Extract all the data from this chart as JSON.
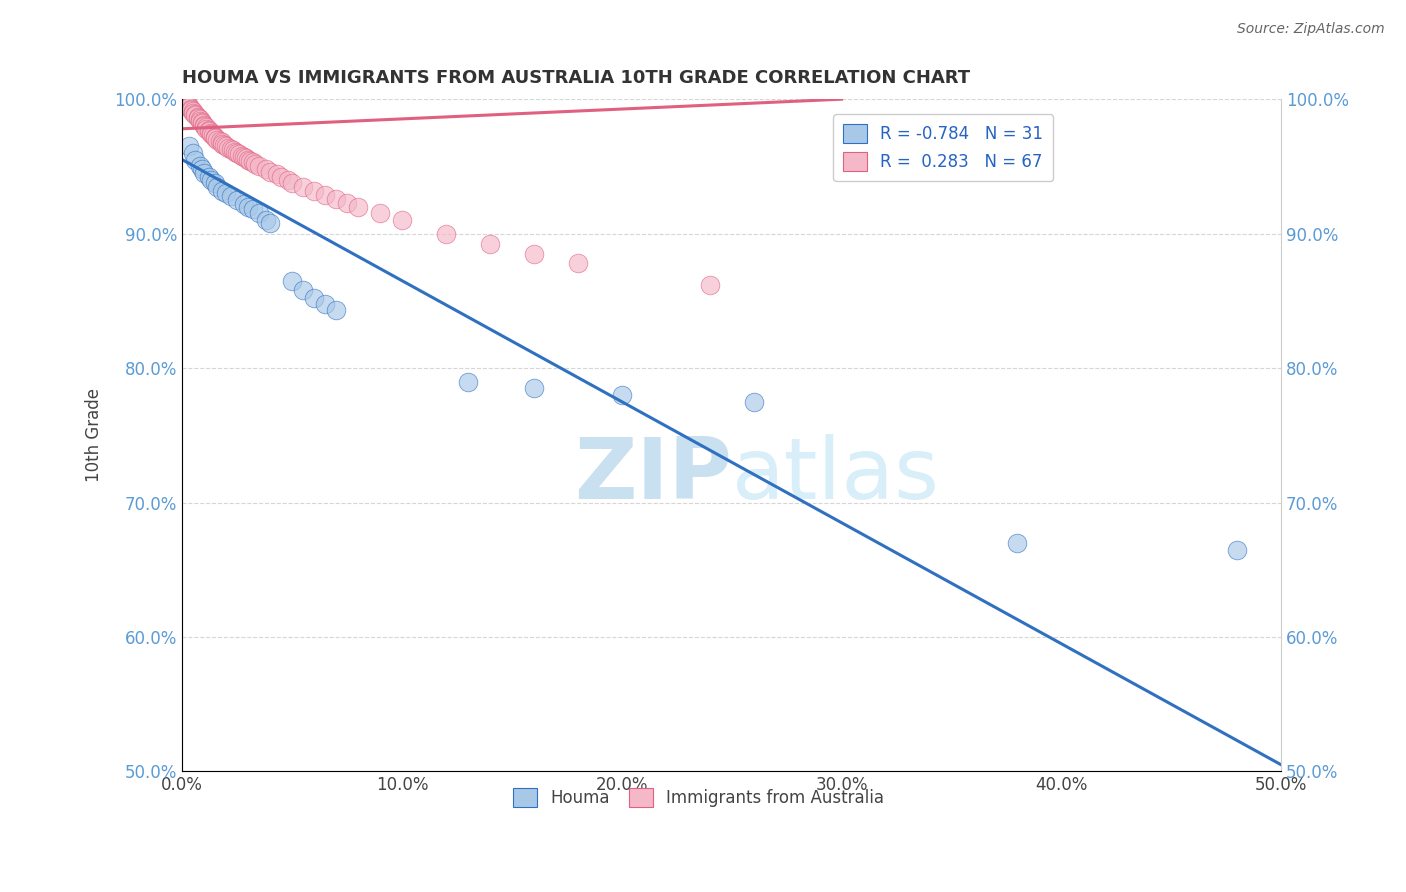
{
  "title": "HOUMA VS IMMIGRANTS FROM AUSTRALIA 10TH GRADE CORRELATION CHART",
  "source_text": "Source: ZipAtlas.com",
  "ylabel": "10th Grade",
  "xlim": [
    0.0,
    0.5
  ],
  "ylim": [
    0.5,
    1.0
  ],
  "xticks": [
    0.0,
    0.1,
    0.2,
    0.3,
    0.4,
    0.5
  ],
  "yticks": [
    0.5,
    0.6,
    0.7,
    0.8,
    0.9,
    1.0
  ],
  "xticklabels": [
    "0.0%",
    "10.0%",
    "20.0%",
    "30.0%",
    "40.0%",
    "50.0%"
  ],
  "yticklabels": [
    "50.0%",
    "60.0%",
    "70.0%",
    "80.0%",
    "90.0%",
    "100.0%"
  ],
  "blue_R": -0.784,
  "blue_N": 31,
  "pink_R": 0.283,
  "pink_N": 67,
  "blue_color": "#A8C8E8",
  "pink_color": "#F4B8C8",
  "blue_line_color": "#3070C0",
  "pink_line_color": "#E06080",
  "blue_scatter_x": [
    0.003,
    0.005,
    0.006,
    0.008,
    0.009,
    0.01,
    0.012,
    0.013,
    0.015,
    0.016,
    0.018,
    0.02,
    0.022,
    0.025,
    0.028,
    0.03,
    0.032,
    0.035,
    0.038,
    0.04,
    0.05,
    0.055,
    0.06,
    0.065,
    0.07,
    0.13,
    0.16,
    0.2,
    0.26,
    0.38,
    0.48
  ],
  "blue_scatter_y": [
    0.965,
    0.96,
    0.955,
    0.95,
    0.948,
    0.945,
    0.942,
    0.94,
    0.938,
    0.935,
    0.932,
    0.93,
    0.928,
    0.925,
    0.922,
    0.92,
    0.918,
    0.915,
    0.91,
    0.908,
    0.865,
    0.858,
    0.852,
    0.848,
    0.843,
    0.79,
    0.785,
    0.78,
    0.775,
    0.67,
    0.665
  ],
  "pink_scatter_x": [
    0.001,
    0.002,
    0.002,
    0.003,
    0.003,
    0.004,
    0.004,
    0.005,
    0.005,
    0.006,
    0.006,
    0.007,
    0.007,
    0.008,
    0.008,
    0.009,
    0.009,
    0.01,
    0.01,
    0.011,
    0.011,
    0.012,
    0.012,
    0.013,
    0.013,
    0.014,
    0.015,
    0.015,
    0.016,
    0.017,
    0.018,
    0.018,
    0.019,
    0.02,
    0.021,
    0.022,
    0.023,
    0.024,
    0.025,
    0.026,
    0.027,
    0.028,
    0.029,
    0.03,
    0.031,
    0.032,
    0.033,
    0.035,
    0.038,
    0.04,
    0.043,
    0.045,
    0.048,
    0.05,
    0.055,
    0.06,
    0.065,
    0.07,
    0.075,
    0.08,
    0.09,
    0.1,
    0.12,
    0.14,
    0.16,
    0.18,
    0.24
  ],
  "pink_scatter_y": [
    0.998,
    0.997,
    0.996,
    0.995,
    0.994,
    0.993,
    0.992,
    0.991,
    0.99,
    0.989,
    0.988,
    0.987,
    0.986,
    0.985,
    0.984,
    0.983,
    0.982,
    0.981,
    0.98,
    0.979,
    0.978,
    0.977,
    0.976,
    0.975,
    0.974,
    0.973,
    0.972,
    0.971,
    0.97,
    0.969,
    0.968,
    0.967,
    0.966,
    0.965,
    0.964,
    0.963,
    0.962,
    0.961,
    0.96,
    0.959,
    0.958,
    0.957,
    0.956,
    0.955,
    0.954,
    0.953,
    0.952,
    0.95,
    0.948,
    0.946,
    0.944,
    0.942,
    0.94,
    0.938,
    0.935,
    0.932,
    0.929,
    0.926,
    0.923,
    0.92,
    0.915,
    0.91,
    0.9,
    0.892,
    0.885,
    0.878,
    0.862
  ],
  "blue_trend_x": [
    0.0,
    0.5
  ],
  "blue_trend_y": [
    0.955,
    0.505
  ],
  "pink_trend_x": [
    0.0,
    0.3
  ],
  "pink_trend_y": [
    0.978,
    1.0
  ],
  "watermark_zip": "ZIP",
  "watermark_atlas": "atlas",
  "watermark_color": "#C8E0F0"
}
